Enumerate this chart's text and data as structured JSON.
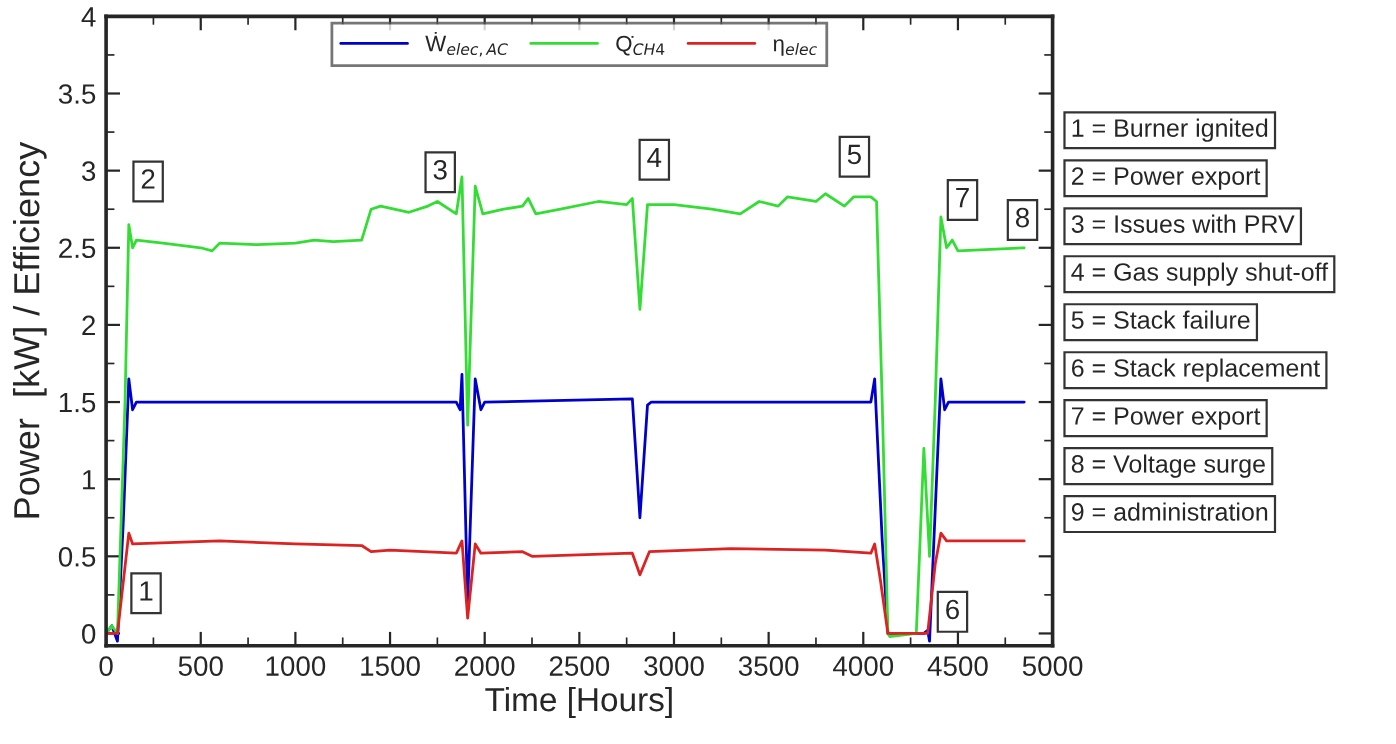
{
  "chart_data": {
    "type": "line",
    "xlabel": "Time [Hours]",
    "ylabel": "Power  [kW] / Efficiency",
    "xlim": [
      0,
      5000
    ],
    "xticks": [
      0,
      500,
      1000,
      1500,
      2000,
      2500,
      3000,
      3500,
      4000,
      4500,
      5000
    ],
    "ylim": [
      -0.08,
      4
    ],
    "yticks": [
      0,
      0.5,
      1,
      1.5,
      2,
      2.5,
      3,
      3.5,
      4
    ],
    "grid": false,
    "legend": "top",
    "marker": "none",
    "line_style": "solid",
    "series": [
      {
        "name": "Ẇ$_{elec,AC}$",
        "color": "#0000cc",
        "x": [
          0,
          30,
          60,
          90,
          120,
          140,
          160,
          1850,
          1870,
          1880,
          1910,
          1950,
          1980,
          2000,
          2780,
          2820,
          2860,
          2880,
          4040,
          4060,
          4100,
          4130,
          4320,
          4340,
          4350,
          4380,
          4410,
          4430,
          4450,
          4850
        ],
        "values": [
          0,
          0.05,
          -0.05,
          0.7,
          1.65,
          1.45,
          1.5,
          1.5,
          1.45,
          1.68,
          0.2,
          1.65,
          1.45,
          1.5,
          1.52,
          0.75,
          1.48,
          1.5,
          1.5,
          1.65,
          0.6,
          0.0,
          0.0,
          0.02,
          -0.05,
          0.8,
          1.65,
          1.45,
          1.5,
          1.5
        ]
      },
      {
        "name": "Q̇$_{CH4}$",
        "color": "#33dd33",
        "x": [
          0,
          30,
          60,
          100,
          120,
          140,
          160,
          300,
          500,
          560,
          600,
          800,
          1000,
          1100,
          1200,
          1350,
          1400,
          1450,
          1600,
          1700,
          1750,
          1850,
          1880,
          1910,
          1950,
          1990,
          2100,
          2200,
          2230,
          2270,
          2400,
          2600,
          2750,
          2780,
          2820,
          2860,
          3000,
          3200,
          3350,
          3450,
          3550,
          3600,
          3750,
          3800,
          3900,
          3950,
          4040,
          4070,
          4100,
          4130,
          4140,
          4280,
          4320,
          4350,
          4380,
          4410,
          4440,
          4470,
          4500,
          4850
        ],
        "values": [
          0,
          0.05,
          0,
          1.5,
          2.65,
          2.5,
          2.55,
          2.53,
          2.5,
          2.48,
          2.53,
          2.52,
          2.53,
          2.55,
          2.54,
          2.55,
          2.75,
          2.77,
          2.73,
          2.77,
          2.8,
          2.72,
          2.96,
          1.35,
          2.9,
          2.72,
          2.75,
          2.77,
          2.82,
          2.72,
          2.75,
          2.8,
          2.78,
          2.82,
          2.1,
          2.78,
          2.78,
          2.75,
          2.72,
          2.8,
          2.77,
          2.83,
          2.8,
          2.85,
          2.77,
          2.83,
          2.83,
          2.8,
          1.5,
          0,
          -0.02,
          0,
          1.2,
          0.5,
          1.5,
          2.7,
          2.5,
          2.55,
          2.48,
          2.5
        ]
      },
      {
        "name": "η$_{elec}$",
        "color": "#dd2222",
        "x": [
          0,
          60,
          120,
          140,
          600,
          1000,
          1350,
          1400,
          1500,
          1850,
          1880,
          1910,
          1950,
          1980,
          2200,
          2250,
          2780,
          2820,
          2870,
          3300,
          3800,
          4040,
          4060,
          4090,
          4130,
          4340,
          4380,
          4410,
          4440,
          4850
        ],
        "values": [
          0,
          0,
          0.65,
          0.58,
          0.6,
          0.58,
          0.57,
          0.53,
          0.54,
          0.52,
          0.6,
          0.1,
          0.58,
          0.52,
          0.53,
          0.5,
          0.52,
          0.38,
          0.53,
          0.55,
          0.54,
          0.52,
          0.58,
          0.35,
          0,
          0,
          0.45,
          0.65,
          0.6,
          0.6
        ]
      }
    ],
    "annotations": [
      {
        "text": "1",
        "x": 211,
        "y": 0.26
      },
      {
        "text": "2",
        "x": 222,
        "y": 2.93
      },
      {
        "text": "3",
        "x": 1765,
        "y": 2.99
      },
      {
        "text": "4",
        "x": 2896,
        "y": 3.07
      },
      {
        "text": "5",
        "x": 3953,
        "y": 3.09
      },
      {
        "text": "6",
        "x": 4471,
        "y": 0.14
      },
      {
        "text": "7",
        "x": 4524,
        "y": 2.81
      },
      {
        "text": "8",
        "x": 4841,
        "y": 2.68
      },
      "1 = Burner ignited",
      "2 = Power export",
      "3 = Issues with PRV",
      "4 = Gas supply shut-off",
      "5 = Stack failure",
      "6 = Stack replacement",
      "7 = Power export",
      "8 = Voltage surge",
      "9 = administration"
    ]
  }
}
